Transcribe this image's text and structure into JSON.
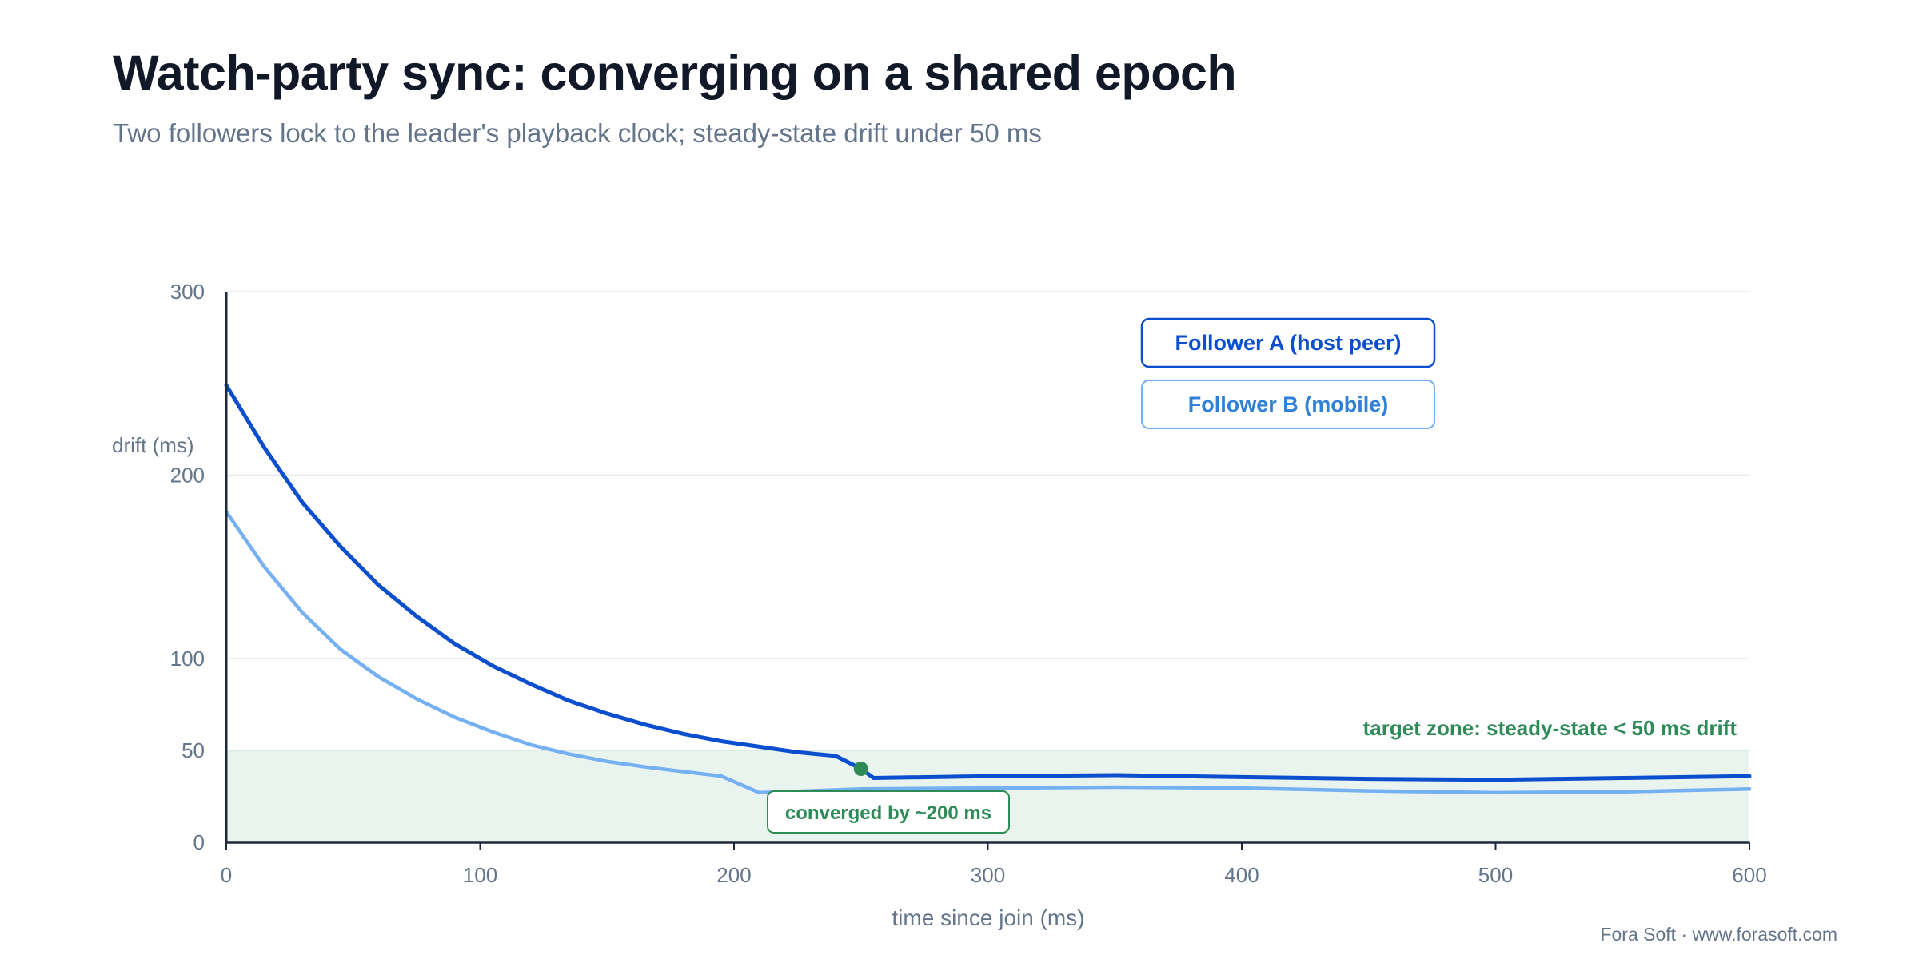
{
  "header": {
    "title": "Watch-party sync: converging on a shared epoch",
    "subtitle": "Two followers lock to the leader's playback clock; steady-state drift under 50 ms"
  },
  "footer": {
    "credit": "Fora Soft · www.forasoft.com"
  },
  "colors": {
    "series_a": "#0b4fcf",
    "series_b": "#74b0f2",
    "target_zone_fill": "#eaf4ee",
    "annotation": "#2e8b57",
    "axis": "#1e293b",
    "grid": "#e5e7eb",
    "tick_text": "#64748b"
  },
  "chart_data": {
    "type": "line",
    "xlabel": "time since join (ms)",
    "ylabel": "drift (ms)",
    "xlim": [
      0,
      600
    ],
    "ylim": [
      0,
      300
    ],
    "x_ticks": [
      0,
      100,
      200,
      300,
      400,
      500,
      600
    ],
    "y_ticks": [
      0,
      50,
      100,
      200,
      300
    ],
    "grid": true,
    "legend_position": "top-right",
    "series": [
      {
        "name": "Follower A (host peer)",
        "x": [
          0,
          15,
          30,
          45,
          60,
          75,
          90,
          105,
          120,
          135,
          150,
          165,
          180,
          195,
          210,
          225,
          240,
          250,
          255,
          300,
          350,
          400,
          450,
          500,
          550,
          600
        ],
        "values": [
          249,
          215,
          185,
          161,
          140,
          123,
          108,
          96,
          86,
          77,
          70,
          64,
          59,
          55,
          52,
          49,
          47,
          40,
          35,
          36,
          36.5,
          35.5,
          34.5,
          34,
          35,
          36
        ]
      },
      {
        "name": "Follower B (mobile)",
        "x": [
          0,
          15,
          30,
          45,
          60,
          75,
          90,
          105,
          120,
          135,
          150,
          165,
          180,
          195,
          210,
          250,
          300,
          350,
          400,
          450,
          500,
          550,
          600
        ],
        "values": [
          180,
          150,
          125,
          105,
          90,
          78,
          68,
          60,
          53,
          48,
          44,
          41,
          38.5,
          36,
          27,
          29,
          29.5,
          30,
          29.5,
          28,
          27,
          27.5,
          29
        ]
      }
    ],
    "target_zone": {
      "y_max": 50,
      "label": "target zone: steady-state < 50 ms drift"
    },
    "marker": {
      "x": 250,
      "y": 40,
      "label": "converged by ~200 ms"
    }
  }
}
